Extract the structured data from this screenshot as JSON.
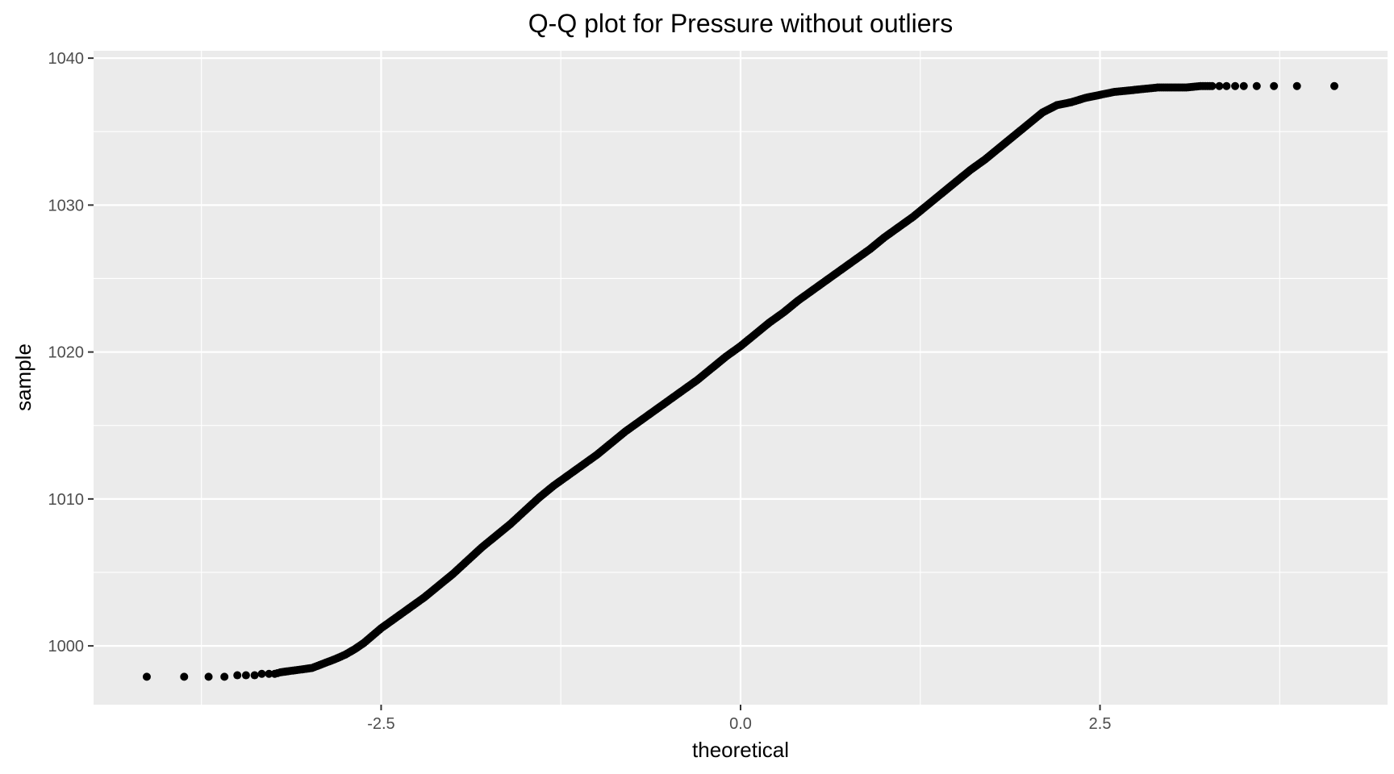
{
  "chart_data": {
    "type": "scatter",
    "title": "Q-Q plot for Pressure without outliers",
    "xlabel": "theoretical",
    "ylabel": "sample",
    "xlim": [
      -4.5,
      4.5
    ],
    "ylim": [
      996,
      1040.5
    ],
    "x_ticks": [
      -2.5,
      0.0,
      2.5
    ],
    "x_tick_labels": [
      "-2.5",
      "0.0",
      "2.5"
    ],
    "y_ticks": [
      1000,
      1010,
      1020,
      1030,
      1040
    ],
    "y_tick_labels": [
      "1000",
      "1010",
      "1020",
      "1030",
      "1040"
    ],
    "grid": true,
    "legend": "none",
    "colors": {
      "panel_background": "#ebebeb",
      "grid_line": "#ffffff",
      "point": "#000000"
    },
    "series": [
      {
        "x": [
          -4.13,
          -3.87,
          -3.7,
          -3.59,
          -3.5,
          -3.44,
          -3.38,
          -3.33,
          -3.28,
          -3.24,
          -3.2,
          -3.13,
          -3.05,
          -2.98,
          -2.9,
          -2.82,
          -2.75,
          -2.68,
          -2.62,
          -2.56,
          -2.5,
          -2.4,
          -2.3,
          -2.2,
          -2.1,
          -2.0,
          -1.9,
          -1.8,
          -1.7,
          -1.6,
          -1.5,
          -1.4,
          -1.3,
          -1.2,
          -1.1,
          -1.0,
          -0.9,
          -0.8,
          -0.7,
          -0.6,
          -0.5,
          -0.4,
          -0.3,
          -0.2,
          -0.1,
          0.0,
          0.1,
          0.2,
          0.3,
          0.4,
          0.5,
          0.6,
          0.7,
          0.8,
          0.9,
          1.0,
          1.1,
          1.2,
          1.3,
          1.4,
          1.5,
          1.6,
          1.7,
          1.8,
          1.9,
          2.0,
          2.1,
          2.2,
          2.3,
          2.4,
          2.5,
          2.6,
          2.7,
          2.8,
          2.9,
          3.0,
          3.1,
          3.2,
          3.28,
          3.33,
          3.38,
          3.44,
          3.5,
          3.59,
          3.71,
          3.87,
          4.13
        ],
        "y": [
          997.9,
          997.9,
          997.9,
          997.9,
          998.0,
          998.0,
          998.0,
          998.1,
          998.1,
          998.1,
          998.2,
          998.3,
          998.4,
          998.5,
          998.8,
          999.1,
          999.4,
          999.8,
          1000.2,
          1000.7,
          1001.2,
          1001.9,
          1002.6,
          1003.3,
          1004.1,
          1004.9,
          1005.8,
          1006.7,
          1007.5,
          1008.3,
          1009.2,
          1010.1,
          1010.9,
          1011.6,
          1012.3,
          1013.0,
          1013.8,
          1014.6,
          1015.3,
          1016.0,
          1016.7,
          1017.4,
          1018.1,
          1018.9,
          1019.7,
          1020.4,
          1021.2,
          1022.0,
          1022.7,
          1023.5,
          1024.2,
          1024.9,
          1025.6,
          1026.3,
          1027.0,
          1027.8,
          1028.5,
          1029.2,
          1030.0,
          1030.8,
          1031.6,
          1032.4,
          1033.1,
          1033.9,
          1034.7,
          1035.5,
          1036.3,
          1036.8,
          1037.0,
          1037.3,
          1037.5,
          1037.7,
          1037.8,
          1037.9,
          1038.0,
          1038.0,
          1038.0,
          1038.1,
          1038.1,
          1038.1,
          1038.1,
          1038.1,
          1038.1,
          1038.1,
          1038.1,
          1038.1,
          1038.1
        ]
      }
    ]
  }
}
